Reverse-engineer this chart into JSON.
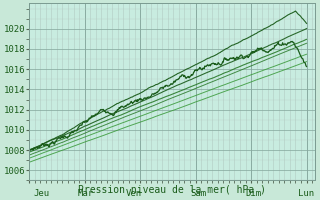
{
  "fig_bg_color": "#c8e8d8",
  "plot_bg_color": "#c8ece0",
  "minor_vgrid_color": "#b8c8c0",
  "minor_hgrid_color": "#c0c8c0",
  "major_grid_color": "#9ab0a8",
  "line_dark": "#1a5c1a",
  "line_mid": "#2a7a2a",
  "line_light": "#3a9a3a",
  "ylabel_ticks": [
    1006,
    1008,
    1010,
    1012,
    1014,
    1016,
    1018,
    1020
  ],
  "ylim": [
    1005.0,
    1022.5
  ],
  "xlim": [
    0,
    5.15
  ],
  "xlabel": "Pression niveau de la mer( hPa )",
  "xtick_labels": [
    "Jeu",
    "Mar",
    "Ven",
    "Sam",
    "Dim",
    "Lun"
  ],
  "xtick_positions": [
    0.08,
    0.88,
    1.75,
    2.9,
    3.9,
    4.85
  ],
  "n_points": 500
}
